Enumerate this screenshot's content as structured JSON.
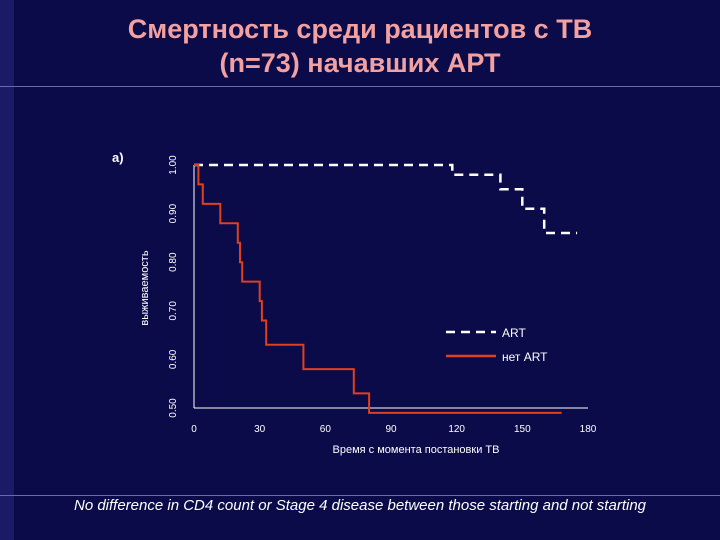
{
  "slide": {
    "title_line1": "Смертность среди рациентов с ТВ",
    "title_line2": "(n=73) начавших АРТ",
    "footnote": "No difference in CD4 count or Stage 4 disease between those starting and not starting"
  },
  "colors": {
    "background": "#0b0b4a",
    "title": "#f2a0a0",
    "art_series": "#ffffff",
    "no_art_series": "#e0401c"
  },
  "chart_data": {
    "type": "line",
    "panel_label": "a)",
    "xlabel": "Время с момента постановки ТВ",
    "ylabel": "выживаемость",
    "xlim": [
      0,
      180
    ],
    "ylim": [
      0.5,
      1.0
    ],
    "x_ticks": [
      "0",
      "30",
      "60",
      "90",
      "120",
      "150",
      "180"
    ],
    "y_ticks": [
      "0.50",
      "0.60",
      "0.70",
      "0.80",
      "0.90",
      "1.00"
    ],
    "legend_position": "bottom-right",
    "series": [
      {
        "name": "ART",
        "style": "dashed",
        "x": [
          0,
          118,
          118,
          140,
          140,
          150,
          150,
          160,
          160,
          175
        ],
        "y": [
          1.0,
          1.0,
          0.98,
          0.98,
          0.95,
          0.95,
          0.91,
          0.91,
          0.86,
          0.86
        ]
      },
      {
        "name": "нет ART",
        "style": "solid",
        "x": [
          0,
          2,
          2,
          4,
          4,
          12,
          12,
          20,
          20,
          21,
          21,
          22,
          22,
          30,
          30,
          31,
          31,
          33,
          33,
          50,
          50,
          73,
          73,
          80,
          80,
          168
        ],
        "y": [
          1.0,
          1.0,
          0.96,
          0.96,
          0.92,
          0.92,
          0.88,
          0.88,
          0.84,
          0.84,
          0.8,
          0.8,
          0.76,
          0.76,
          0.72,
          0.72,
          0.68,
          0.68,
          0.63,
          0.63,
          0.58,
          0.58,
          0.53,
          0.53,
          0.49,
          0.49
        ]
      }
    ]
  }
}
